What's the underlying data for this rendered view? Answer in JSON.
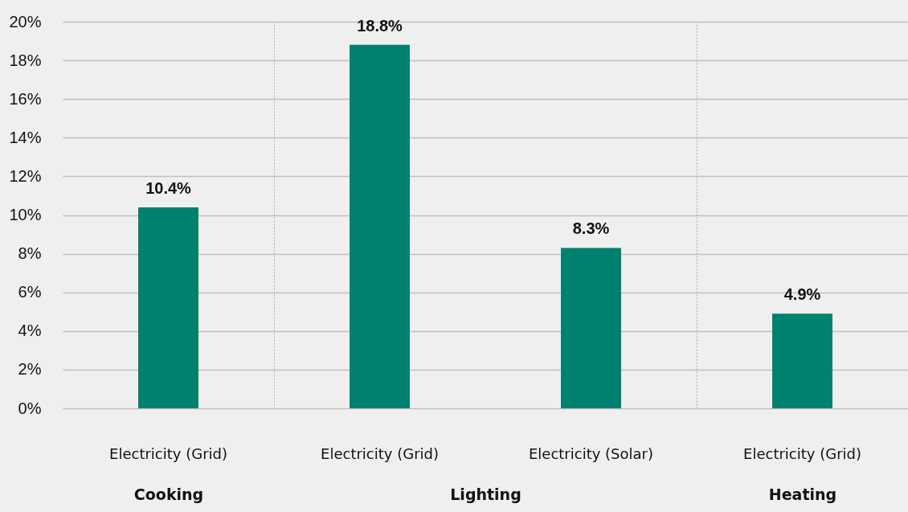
{
  "chart_data": [
    {
      "type": "bar",
      "categories": [
        "Electricity (Grid)"
      ],
      "values": [
        10.4
      ],
      "value_labels": [
        "10.4%"
      ],
      "color": "#00806e",
      "xlabel": "Cooking",
      "ylim": [
        0,
        20
      ],
      "yticks": [
        {
          "value": 0,
          "label": "0%"
        },
        {
          "value": 2,
          "label": "2%"
        },
        {
          "value": 4,
          "label": "4%"
        },
        {
          "value": 6,
          "label": "6%"
        },
        {
          "value": 8,
          "label": "8%"
        },
        {
          "value": 10,
          "label": "10%"
        },
        {
          "value": 12,
          "label": "12%"
        },
        {
          "value": 14,
          "label": "14%"
        },
        {
          "value": 16,
          "label": "16%"
        },
        {
          "value": 18,
          "label": "18%"
        },
        {
          "value": 20,
          "label": "20%"
        }
      ],
      "grid": "y"
    },
    {
      "type": "bar",
      "categories": [
        "Electricity (Grid)",
        "Electricity (Solar)"
      ],
      "values": [
        18.8,
        8.3
      ],
      "value_labels": [
        "18.8%",
        "8.3%"
      ],
      "color": "#00806e",
      "xlabel": "Lighting",
      "ylim": [
        0,
        20
      ],
      "yticks": [
        {
          "value": 0,
          "label": null
        },
        {
          "value": 2,
          "label": null
        },
        {
          "value": 4,
          "label": null
        },
        {
          "value": 6,
          "label": null
        },
        {
          "value": 8,
          "label": null
        },
        {
          "value": 10,
          "label": null
        },
        {
          "value": 12,
          "label": null
        },
        {
          "value": 14,
          "label": null
        },
        {
          "value": 16,
          "label": null
        },
        {
          "value": 18,
          "label": null
        },
        {
          "value": 20,
          "label": null
        }
      ],
      "grid": "y",
      "tick_labels": "x"
    },
    {
      "type": "bar",
      "categories": [
        "Electricity (Grid)"
      ],
      "values": [
        4.9
      ],
      "value_labels": [
        "4.9%"
      ],
      "color": "#00806e",
      "xlabel": "Heating",
      "ylim": [
        0,
        20
      ],
      "yticks": [
        {
          "value": 0,
          "label": null
        },
        {
          "value": 2,
          "label": null
        },
        {
          "value": 4,
          "label": null
        },
        {
          "value": 6,
          "label": null
        },
        {
          "value": 8,
          "label": null
        },
        {
          "value": 10,
          "label": null
        },
        {
          "value": 12,
          "label": null
        },
        {
          "value": 14,
          "label": null
        },
        {
          "value": 16,
          "label": null
        },
        {
          "value": 18,
          "label": null
        },
        {
          "value": 20,
          "label": null
        }
      ],
      "grid": "y",
      "tick_labels": "x"
    }
  ]
}
